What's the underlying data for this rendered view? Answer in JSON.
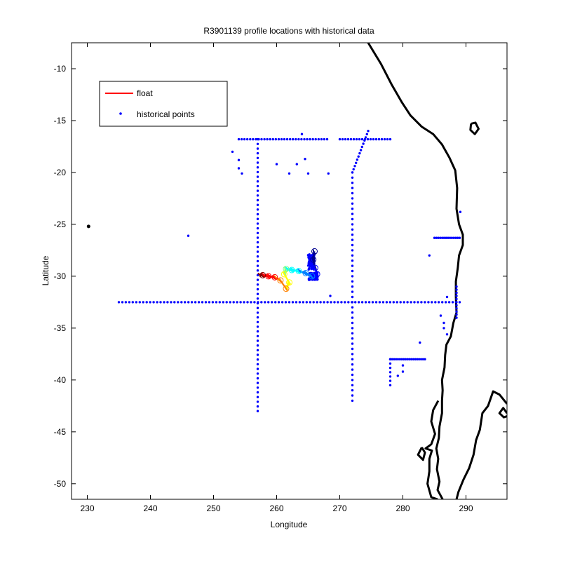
{
  "chart_data": {
    "type": "scatter",
    "title": "R3901139 profile locations with historical data",
    "xlabel": "Longitude",
    "ylabel": "Latitude",
    "xlim": [
      227.5,
      296.5
    ],
    "ylim": [
      -51.5,
      -7.5
    ],
    "xticks": [
      230,
      240,
      250,
      260,
      270,
      280,
      290
    ],
    "yticks": [
      -10,
      -15,
      -20,
      -25,
      -30,
      -35,
      -40,
      -45,
      -50
    ],
    "grid": false,
    "legend": {
      "placement": "top-left",
      "entries": [
        {
          "label": "float",
          "color": "#ff0000",
          "marker": "line"
        },
        {
          "label": "historical points",
          "color": "#0000ff",
          "marker": "dot"
        }
      ]
    },
    "historical_series": {
      "name": "historical points",
      "color": "#0000ff",
      "lines": [
        {
          "from": [
            235,
            -32.5
          ],
          "to": [
            289,
            -32.5
          ],
          "step": 0.55
        },
        {
          "from": [
            257,
            -16.8
          ],
          "to": [
            257,
            -43.0
          ],
          "step": 0.45
        },
        {
          "from": [
            272,
            -20.0
          ],
          "to": [
            272,
            -42.0
          ],
          "step": 0.5
        },
        {
          "from": [
            254,
            -16.8
          ],
          "to": [
            268,
            -16.8
          ],
          "step": 0.45
        },
        {
          "from": [
            270,
            -16.8
          ],
          "to": [
            278,
            -16.8
          ],
          "step": 0.45
        },
        {
          "from": [
            272,
            -20.0
          ],
          "to": [
            274.5,
            -16.0
          ],
          "step": 0.35
        },
        {
          "from": [
            285,
            -26.3
          ],
          "to": [
            289,
            -26.3
          ],
          "step": 0.3
        },
        {
          "from": [
            278,
            -38.0
          ],
          "to": [
            283.5,
            -38.0
          ],
          "step": 0.3
        },
        {
          "from": [
            278,
            -38.0
          ],
          "to": [
            278,
            -40.5
          ],
          "step": 0.4
        },
        {
          "from": [
            288.5,
            -31.0
          ],
          "to": [
            288.5,
            -34.0
          ],
          "step": 0.3
        }
      ],
      "points": [
        [
          246,
          -26.1
        ],
        [
          268.5,
          -31.9
        ],
        [
          284.2,
          -28.0
        ],
        [
          282.7,
          -36.4
        ],
        [
          289.1,
          -23.8
        ],
        [
          253,
          -18
        ],
        [
          254,
          -18.8
        ],
        [
          254,
          -19.6
        ],
        [
          254.5,
          -20.1
        ],
        [
          260,
          -19.2
        ],
        [
          263.2,
          -19.2
        ],
        [
          264,
          -16.3
        ],
        [
          264.5,
          -18.7
        ],
        [
          262,
          -20.1
        ],
        [
          265,
          -20.1
        ],
        [
          268.2,
          -20.1
        ],
        [
          280,
          -38.6
        ],
        [
          280,
          -39.2
        ],
        [
          279.2,
          -39.6
        ],
        [
          286,
          -33.8
        ],
        [
          286.5,
          -34.5
        ],
        [
          287,
          -35.6
        ],
        [
          286.5,
          -35.0
        ],
        [
          287,
          -32.0
        ]
      ],
      "clusters": [
        {
          "center": [
            265.5,
            -28.6
          ],
          "spread": [
            1.0,
            1.5
          ]
        },
        {
          "center": [
            265.8,
            -30.0
          ],
          "spread": [
            1.4,
            0.7
          ]
        }
      ]
    },
    "float_series": {
      "name": "float",
      "track_colors": [
        "#00008f",
        "#0000ff",
        "#0080ff",
        "#00ffff",
        "#80ff80",
        "#ffff00",
        "#ff8000",
        "#ff0000",
        "#800000"
      ],
      "track": [
        [
          266,
          -27.6
        ],
        [
          265.8,
          -28.4
        ],
        [
          266.1,
          -29.2
        ],
        [
          266.4,
          -29.8
        ],
        [
          265.6,
          -30.0
        ],
        [
          264.6,
          -29.7
        ],
        [
          263.5,
          -29.5
        ],
        [
          262.4,
          -29.4
        ],
        [
          261.5,
          -29.3
        ],
        [
          261.2,
          -29.8
        ],
        [
          262.0,
          -30.6
        ],
        [
          261.5,
          -31.2
        ],
        [
          260.6,
          -30.4
        ],
        [
          259.7,
          -30.1
        ],
        [
          258.7,
          -30.0
        ],
        [
          257.8,
          -29.9
        ],
        [
          257.2,
          -29.9
        ]
      ]
    },
    "black_marker": [
      230.2,
      -25.2
    ],
    "coastline": {
      "color": "#000000",
      "segments": [
        [
          [
            274.5,
            -7.5
          ],
          [
            276.5,
            -9.5
          ],
          [
            278.2,
            -11.5
          ],
          [
            279.8,
            -13.2
          ],
          [
            281.2,
            -14.5
          ],
          [
            283.0,
            -15.6
          ],
          [
            284.8,
            -16.3
          ],
          [
            286.2,
            -17.3
          ],
          [
            287.4,
            -18.6
          ],
          [
            288.3,
            -19.8
          ],
          [
            288.6,
            -21.5
          ],
          [
            288.5,
            -23.5
          ],
          [
            288.9,
            -25.0
          ],
          [
            289.5,
            -26.0
          ],
          [
            289.5,
            -27.0
          ],
          [
            288.9,
            -28.0
          ],
          [
            288.7,
            -29.2
          ],
          [
            288.4,
            -30.5
          ],
          [
            288.4,
            -32.0
          ],
          [
            288.5,
            -33.5
          ],
          [
            288.0,
            -34.5
          ],
          [
            287.6,
            -35.8
          ],
          [
            286.9,
            -36.6
          ],
          [
            286.7,
            -37.6
          ],
          [
            286.6,
            -38.8
          ],
          [
            286.2,
            -40.0
          ],
          [
            286.3,
            -41.0
          ],
          [
            286.2,
            -42.0
          ],
          [
            286.2,
            -43.2
          ],
          [
            285.8,
            -44.5
          ],
          [
            285.7,
            -45.6
          ],
          [
            285.3,
            -46.6
          ],
          [
            285.6,
            -47.6
          ],
          [
            285.4,
            -48.6
          ],
          [
            285.8,
            -49.8
          ],
          [
            285.5,
            -50.6
          ],
          [
            286.3,
            -51.5
          ]
        ],
        [
          [
            290.8,
            -15.3
          ],
          [
            291.5,
            -15.2
          ],
          [
            292.0,
            -15.8
          ],
          [
            291.4,
            -16.3
          ],
          [
            290.7,
            -15.9
          ],
          [
            290.8,
            -15.3
          ]
        ],
        [
          [
            296.5,
            -42.3
          ],
          [
            295.3,
            -41.4
          ],
          [
            294.3,
            -41.1
          ],
          [
            293.5,
            -42.5
          ],
          [
            292.6,
            -43.2
          ],
          [
            292.2,
            -44.8
          ],
          [
            291.6,
            -45.8
          ],
          [
            291.2,
            -47.2
          ],
          [
            290.5,
            -48.5
          ],
          [
            289.6,
            -49.6
          ],
          [
            288.8,
            -50.8
          ],
          [
            288.5,
            -51.5
          ]
        ],
        [
          [
            296.5,
            -43.2
          ],
          [
            295.9,
            -42.7
          ],
          [
            295.3,
            -43.2
          ],
          [
            296.0,
            -43.6
          ],
          [
            296.5,
            -43.5
          ]
        ],
        [
          [
            285.6,
            -42.0
          ],
          [
            284.8,
            -42.9
          ],
          [
            284.5,
            -44.0
          ],
          [
            285.1,
            -45.2
          ],
          [
            284.5,
            -46.2
          ],
          [
            283.6,
            -46.6
          ],
          [
            284.6,
            -46.8
          ],
          [
            284.2,
            -47.6
          ],
          [
            284.2,
            -48.8
          ],
          [
            283.9,
            -50.0
          ],
          [
            284.5,
            -51.3
          ],
          [
            285.5,
            -51.5
          ]
        ],
        [
          [
            283.0,
            -46.5
          ],
          [
            282.4,
            -47.2
          ],
          [
            283.2,
            -47.7
          ],
          [
            283.5,
            -47.0
          ],
          [
            283.0,
            -46.5
          ]
        ]
      ]
    }
  }
}
